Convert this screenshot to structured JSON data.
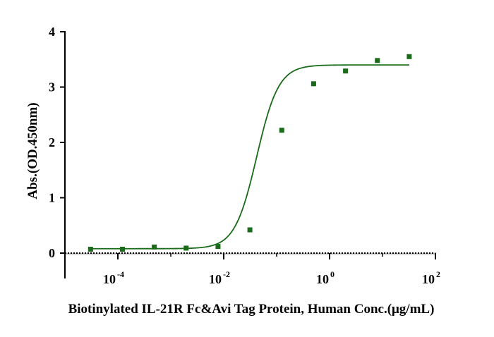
{
  "chart_data": {
    "type": "scatter",
    "title": "",
    "xlabel": "Biotinylated IL-21R Fc&Avi Tag Protein, Human Conc.(μg/mL)",
    "ylabel": "Abs.(OD.450nm)",
    "xscale": "log",
    "xlim": [
      1e-05,
      100
    ],
    "ylim": [
      0,
      4
    ],
    "x_ticks": [
      {
        "base": "10",
        "exp": "-4",
        "value": 0.0001
      },
      {
        "base": "10",
        "exp": "-2",
        "value": 0.01
      },
      {
        "base": "10",
        "exp": "0",
        "value": 1
      },
      {
        "base": "10",
        "exp": "2",
        "value": 100
      }
    ],
    "y_ticks": [
      "0",
      "1",
      "2",
      "3",
      "4"
    ],
    "series": [
      {
        "x": [
          3.05e-05,
          0.000122,
          0.000488,
          0.00195,
          0.00781,
          0.03125,
          0.125,
          0.5,
          2,
          8,
          32
        ],
        "y": [
          0.07,
          0.07,
          0.11,
          0.09,
          0.12,
          0.42,
          2.22,
          3.06,
          3.29,
          3.48,
          3.55
        ],
        "marker": "square",
        "color": "#1a6b1a",
        "fit": "4PL",
        "fit_params": {
          "bottom": 0.08,
          "top": 3.4,
          "ec50": 0.042,
          "hill": 2.1
        }
      }
    ],
    "grid": false,
    "legend": "none"
  }
}
